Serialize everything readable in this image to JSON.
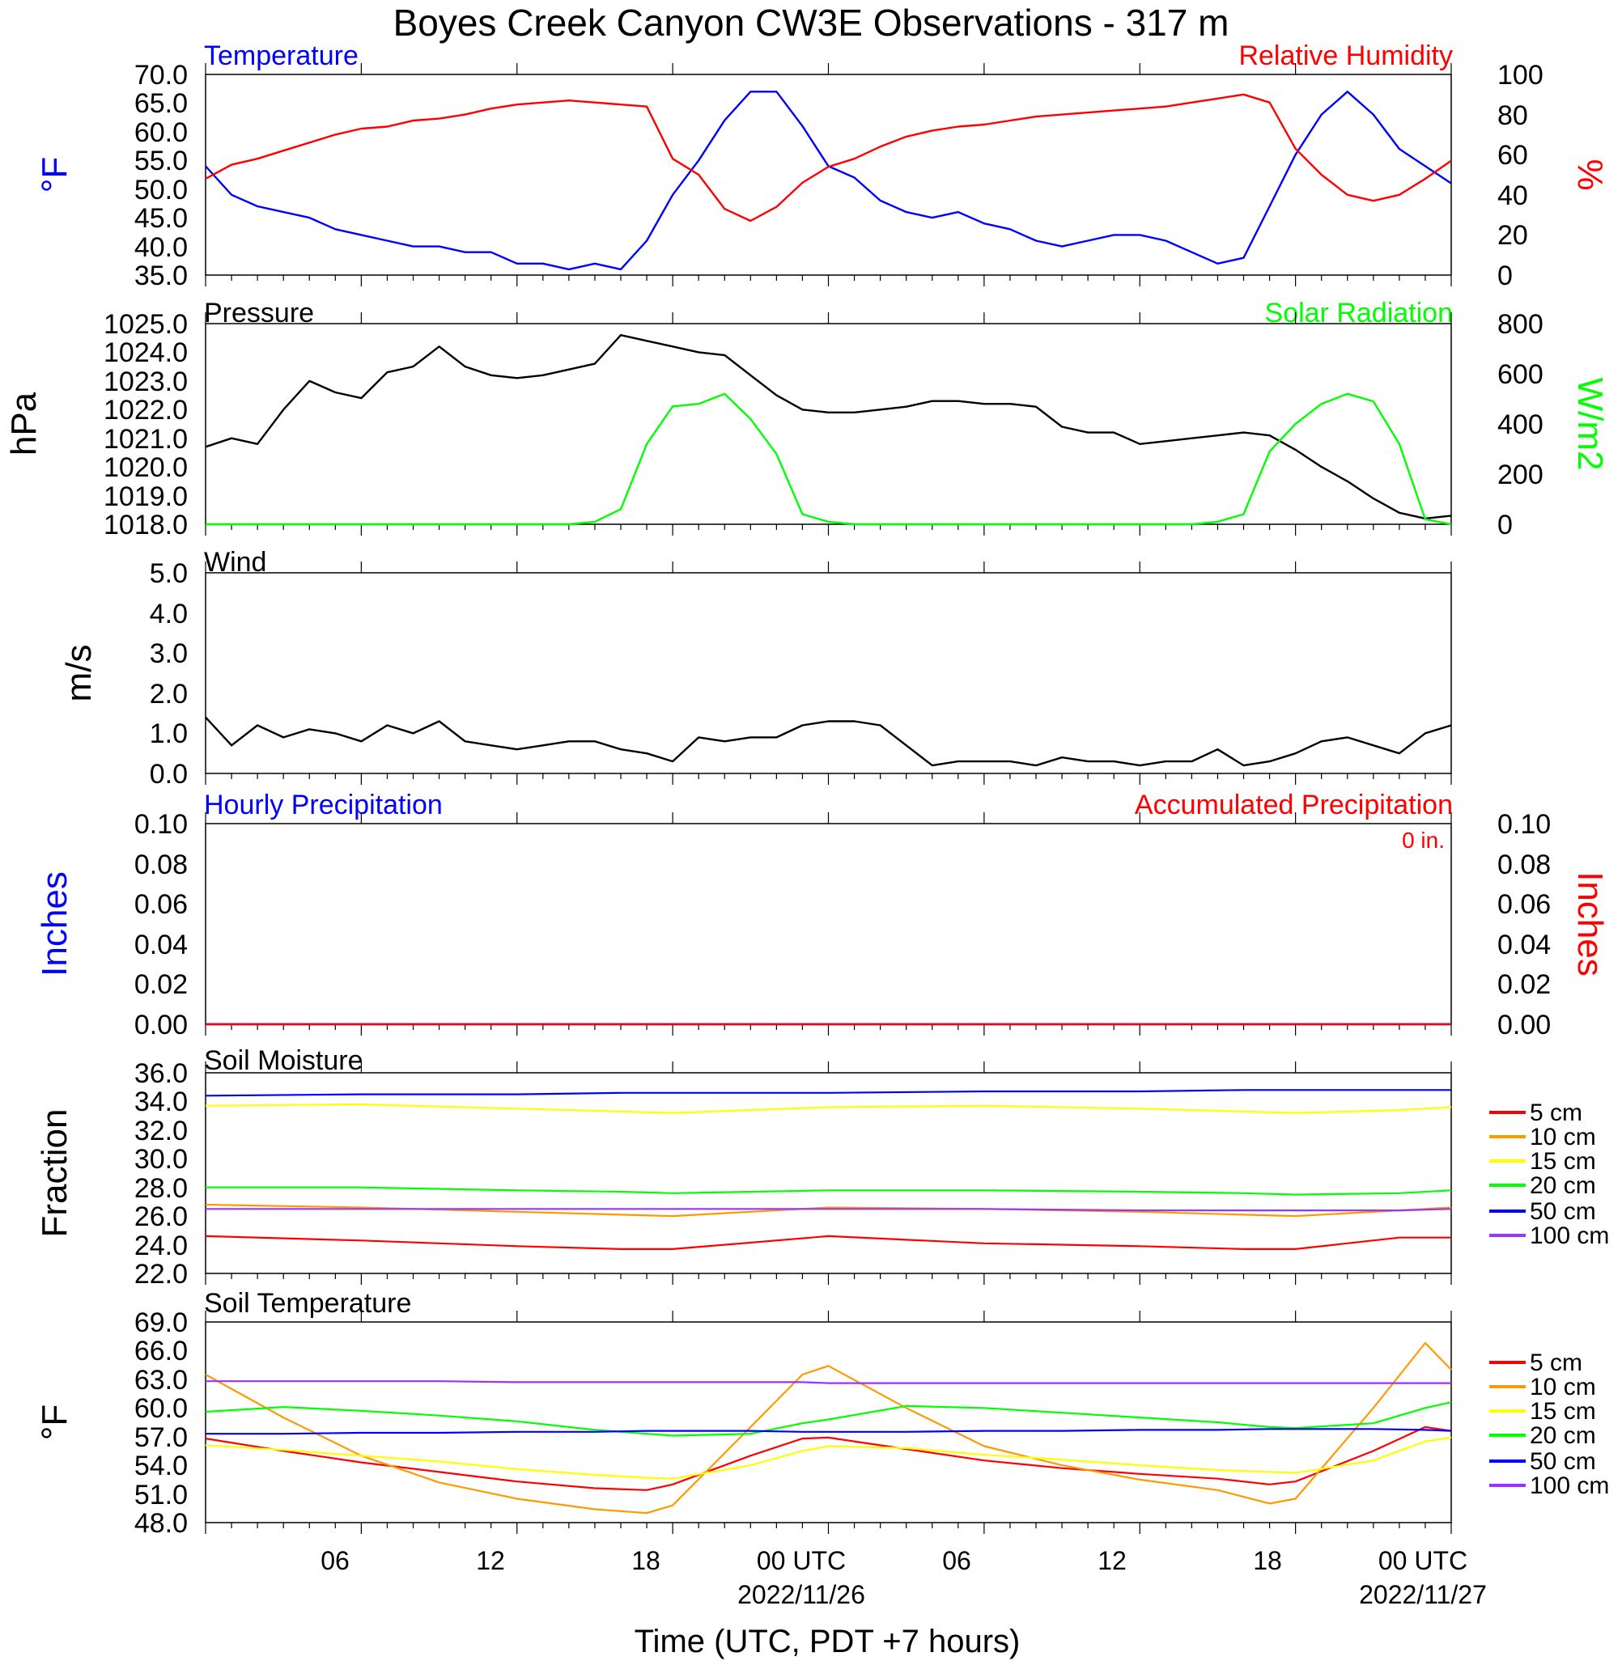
{
  "title": "Boyes Creek Canyon CW3E Observations - 317 m",
  "xaxis": {
    "label": "Time (UTC, PDT +7 hours)",
    "ticks": [
      "06",
      "12",
      "18",
      "00 UTC",
      "06",
      "12",
      "18",
      "00 UTC"
    ],
    "dates": [
      "2022/11/26",
      "2022/11/27"
    ]
  },
  "colors": {
    "blue": "#0000ff",
    "red": "#ff0000",
    "green": "#00ff00",
    "black": "#000000",
    "orange": "#ff9900",
    "yellow": "#ffff00",
    "purple": "#9933ff"
  },
  "soil_legend": [
    "5 cm",
    "10 cm",
    "15 cm",
    "20 cm",
    "50 cm",
    "100 cm"
  ],
  "chart_data": [
    {
      "type": "line",
      "title_left": "Temperature",
      "title_right": "Relative Humidity",
      "ylabel_left": "°F",
      "ylabel_right": "%",
      "ylim": [
        35,
        70
      ],
      "ylim_right": [
        0,
        100
      ],
      "yticks": [
        "35.0",
        "40.0",
        "45.0",
        "50.0",
        "55.0",
        "60.0",
        "65.0",
        "70.0"
      ],
      "yticks_right": [
        "0",
        "20",
        "40",
        "60",
        "80",
        "100"
      ],
      "x_hours": [
        0,
        1,
        2,
        3,
        4,
        5,
        6,
        7,
        8,
        9,
        10,
        11,
        12,
        13,
        14,
        15,
        16,
        17,
        18,
        19,
        20,
        21,
        22,
        23,
        24,
        25,
        26,
        27,
        28,
        29,
        30,
        31,
        32,
        33,
        34,
        35,
        36,
        37,
        38,
        39,
        40,
        41,
        42,
        43,
        44,
        45,
        46,
        47,
        48
      ],
      "series": [
        {
          "name": "Temperature",
          "color": "#0000ff",
          "axis": "left",
          "values": [
            54,
            49,
            47,
            46,
            45,
            43,
            42,
            41,
            40,
            40,
            39,
            39,
            37,
            37,
            36,
            37,
            36,
            41,
            49,
            55,
            62,
            67,
            67,
            61,
            54,
            52,
            48,
            46,
            45,
            46,
            44,
            43,
            41,
            40,
            41,
            42,
            42,
            41,
            39,
            37,
            38,
            47,
            56,
            63,
            67,
            63,
            57,
            54,
            51
          ]
        },
        {
          "name": "Relative Humidity",
          "color": "#ff0000",
          "axis": "right",
          "values": [
            48,
            55,
            58,
            62,
            66,
            70,
            73,
            74,
            77,
            78,
            80,
            83,
            85,
            86,
            87,
            86,
            85,
            84,
            58,
            50,
            33,
            27,
            34,
            46,
            54,
            58,
            64,
            69,
            72,
            74,
            75,
            77,
            79,
            80,
            81,
            82,
            83,
            84,
            86,
            88,
            90,
            86,
            63,
            50,
            40,
            37,
            40,
            48,
            57
          ]
        }
      ]
    },
    {
      "type": "line",
      "title_left": "Pressure",
      "title_right": "Solar Radiation",
      "ylabel_left": "hPa",
      "ylabel_right": "W/m2",
      "ylim": [
        1018,
        1025
      ],
      "ylim_right": [
        0,
        800
      ],
      "yticks": [
        "1018.0",
        "1019.0",
        "1020.0",
        "1021.0",
        "1022.0",
        "1023.0",
        "1024.0",
        "1025.0"
      ],
      "yticks_right": [
        "0",
        "200",
        "400",
        "600",
        "800"
      ],
      "x_hours": [
        0,
        1,
        2,
        3,
        4,
        5,
        6,
        7,
        8,
        9,
        10,
        11,
        12,
        13,
        14,
        15,
        16,
        17,
        18,
        19,
        20,
        21,
        22,
        23,
        24,
        25,
        26,
        27,
        28,
        29,
        30,
        31,
        32,
        33,
        34,
        35,
        36,
        37,
        38,
        39,
        40,
        41,
        42,
        43,
        44,
        45,
        46,
        47,
        48
      ],
      "series": [
        {
          "name": "Pressure",
          "color": "#000000",
          "axis": "left",
          "values": [
            1020.7,
            1021.0,
            1020.8,
            1022.0,
            1023.0,
            1022.6,
            1022.4,
            1023.3,
            1023.5,
            1024.2,
            1023.5,
            1023.2,
            1023.1,
            1023.2,
            1023.4,
            1023.6,
            1024.6,
            1024.4,
            1024.2,
            1024.0,
            1023.9,
            1023.2,
            1022.5,
            1022.0,
            1021.9,
            1021.9,
            1022.0,
            1022.1,
            1022.3,
            1022.3,
            1022.2,
            1022.2,
            1022.1,
            1021.4,
            1021.2,
            1021.2,
            1020.8,
            1020.9,
            1021.0,
            1021.1,
            1021.2,
            1021.1,
            1020.6,
            1020.0,
            1019.5,
            1018.9,
            1018.4,
            1018.2,
            1018.3
          ]
        },
        {
          "name": "Solar Radiation",
          "color": "#00ff00",
          "axis": "right",
          "values": [
            0,
            0,
            0,
            0,
            0,
            0,
            0,
            0,
            0,
            0,
            0,
            0,
            0,
            0,
            0,
            10,
            60,
            320,
            470,
            480,
            520,
            420,
            280,
            40,
            10,
            0,
            0,
            0,
            0,
            0,
            0,
            0,
            0,
            0,
            0,
            0,
            0,
            0,
            0,
            10,
            40,
            290,
            400,
            480,
            520,
            490,
            320,
            20,
            0
          ]
        }
      ]
    },
    {
      "type": "line",
      "title_left": "Wind",
      "ylabel_left": "m/s",
      "ylim": [
        0,
        5
      ],
      "yticks": [
        "0.0",
        "1.0",
        "2.0",
        "3.0",
        "4.0",
        "5.0"
      ],
      "x_hours": [
        0,
        1,
        2,
        3,
        4,
        5,
        6,
        7,
        8,
        9,
        10,
        11,
        12,
        13,
        14,
        15,
        16,
        17,
        18,
        19,
        20,
        21,
        22,
        23,
        24,
        25,
        26,
        27,
        28,
        29,
        30,
        31,
        32,
        33,
        34,
        35,
        36,
        37,
        38,
        39,
        40,
        41,
        42,
        43,
        44,
        45,
        46,
        47,
        48
      ],
      "series": [
        {
          "name": "Wind speed",
          "color": "#000000",
          "axis": "left",
          "values": [
            1.4,
            0.7,
            1.2,
            0.9,
            1.1,
            1.0,
            0.8,
            1.2,
            1.0,
            1.3,
            0.8,
            0.7,
            0.6,
            0.7,
            0.8,
            0.8,
            0.6,
            0.5,
            0.3,
            0.9,
            0.8,
            0.9,
            0.9,
            1.2,
            1.3,
            1.3,
            1.2,
            0.7,
            0.2,
            0.3,
            0.3,
            0.3,
            0.2,
            0.4,
            0.3,
            0.3,
            0.2,
            0.3,
            0.3,
            0.6,
            0.2,
            0.3,
            0.5,
            0.8,
            0.9,
            0.7,
            0.5,
            1.0,
            1.2
          ]
        }
      ]
    },
    {
      "type": "line",
      "title_left": "Hourly Precipitation",
      "title_right": "Accumulated Precipitation",
      "annotation": "0 in.",
      "ylabel_left": "Inches",
      "ylabel_right": "Inches",
      "ylim": [
        0,
        0.1
      ],
      "ylim_right": [
        0,
        0.1
      ],
      "yticks": [
        "0.00",
        "0.02",
        "0.04",
        "0.06",
        "0.08",
        "0.10"
      ],
      "yticks_right": [
        "0.00",
        "0.02",
        "0.04",
        "0.06",
        "0.08",
        "0.10"
      ],
      "x_hours": [
        0,
        48
      ],
      "series": [
        {
          "name": "Hourly Precipitation",
          "color": "#0000ff",
          "axis": "left",
          "values": [
            0,
            0
          ]
        },
        {
          "name": "Accumulated Precipitation",
          "color": "#ff0000",
          "axis": "right",
          "values": [
            0,
            0
          ]
        }
      ]
    },
    {
      "type": "line",
      "title_left": "Soil Moisture",
      "ylabel_left": "Fraction",
      "ylim": [
        22,
        36
      ],
      "yticks": [
        "22.0",
        "24.0",
        "26.0",
        "28.0",
        "30.0",
        "32.0",
        "34.0",
        "36.0"
      ],
      "x_hours": [
        0,
        6,
        12,
        16,
        18,
        24,
        30,
        36,
        40,
        42,
        46,
        48
      ],
      "series": [
        {
          "name": "5 cm",
          "color": "#ff0000",
          "axis": "left",
          "values": [
            24.6,
            24.3,
            23.9,
            23.7,
            23.7,
            24.6,
            24.1,
            23.9,
            23.7,
            23.7,
            24.5,
            24.5
          ]
        },
        {
          "name": "10 cm",
          "color": "#ff9900",
          "axis": "left",
          "values": [
            26.8,
            26.6,
            26.3,
            26.1,
            26.0,
            26.6,
            26.5,
            26.3,
            26.1,
            26.0,
            26.4,
            26.6
          ]
        },
        {
          "name": "15 cm",
          "color": "#ffff00",
          "axis": "left",
          "values": [
            33.7,
            33.8,
            33.5,
            33.3,
            33.2,
            33.6,
            33.7,
            33.5,
            33.3,
            33.2,
            33.4,
            33.6
          ]
        },
        {
          "name": "20 cm",
          "color": "#00ff00",
          "axis": "left",
          "values": [
            28.0,
            28.0,
            27.8,
            27.7,
            27.6,
            27.8,
            27.8,
            27.7,
            27.6,
            27.5,
            27.6,
            27.8
          ]
        },
        {
          "name": "50 cm",
          "color": "#0000ff",
          "axis": "left",
          "values": [
            34.4,
            34.5,
            34.5,
            34.6,
            34.6,
            34.6,
            34.7,
            34.7,
            34.8,
            34.8,
            34.8,
            34.8
          ]
        },
        {
          "name": "100 cm",
          "color": "#9933ff",
          "axis": "left",
          "values": [
            26.5,
            26.5,
            26.5,
            26.5,
            26.5,
            26.5,
            26.5,
            26.4,
            26.4,
            26.4,
            26.4,
            26.5
          ]
        }
      ]
    },
    {
      "type": "line",
      "title_left": "Soil Temperature",
      "ylabel_left": "°F",
      "ylim": [
        48,
        69
      ],
      "yticks": [
        "48.0",
        "51.0",
        "54.0",
        "57.0",
        "60.0",
        "63.0",
        "66.0",
        "69.0"
      ],
      "x_hours": [
        0,
        3,
        6,
        9,
        12,
        15,
        17,
        18,
        21,
        23,
        24,
        27,
        30,
        33,
        36,
        39,
        41,
        42,
        45,
        47,
        48
      ],
      "series": [
        {
          "name": "5 cm",
          "color": "#ff0000",
          "axis": "left",
          "values": [
            56.8,
            55.5,
            54.3,
            53.3,
            52.3,
            51.6,
            51.4,
            52.0,
            55.0,
            56.8,
            56.9,
            55.7,
            54.5,
            53.7,
            53.1,
            52.6,
            52.0,
            52.3,
            55.5,
            58.0,
            57.6
          ]
        },
        {
          "name": "10 cm",
          "color": "#ff9900",
          "axis": "left",
          "values": [
            63.5,
            59.0,
            55.0,
            52.2,
            50.5,
            49.4,
            49.0,
            49.8,
            58.0,
            63.5,
            64.4,
            60.0,
            56.0,
            54.0,
            52.5,
            51.4,
            50.0,
            50.5,
            60.0,
            66.8,
            64.0
          ]
        },
        {
          "name": "15 cm",
          "color": "#ffff00",
          "axis": "left",
          "values": [
            56.1,
            55.6,
            55.0,
            54.4,
            53.6,
            53.0,
            52.7,
            52.6,
            54.0,
            55.5,
            56.0,
            55.8,
            55.1,
            54.6,
            54.0,
            53.5,
            53.3,
            53.2,
            54.5,
            56.5,
            56.9
          ]
        },
        {
          "name": "20 cm",
          "color": "#00ff00",
          "axis": "left",
          "values": [
            59.6,
            60.1,
            59.7,
            59.2,
            58.6,
            57.7,
            57.3,
            57.1,
            57.3,
            58.4,
            58.8,
            60.2,
            60.0,
            59.5,
            59.0,
            58.5,
            58.0,
            57.9,
            58.4,
            60.0,
            60.6
          ]
        },
        {
          "name": "50 cm",
          "color": "#0000ff",
          "axis": "left",
          "values": [
            57.3,
            57.3,
            57.4,
            57.4,
            57.5,
            57.5,
            57.6,
            57.6,
            57.6,
            57.5,
            57.5,
            57.5,
            57.6,
            57.6,
            57.7,
            57.7,
            57.8,
            57.8,
            57.8,
            57.7,
            57.6
          ]
        },
        {
          "name": "100 cm",
          "color": "#9933ff",
          "axis": "left",
          "values": [
            62.8,
            62.8,
            62.8,
            62.8,
            62.7,
            62.7,
            62.7,
            62.7,
            62.7,
            62.7,
            62.6,
            62.6,
            62.6,
            62.6,
            62.6,
            62.6,
            62.6,
            62.6,
            62.6,
            62.6,
            62.6
          ]
        }
      ]
    }
  ]
}
